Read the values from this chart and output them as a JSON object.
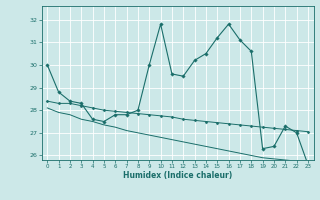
{
  "title": "",
  "xlabel": "Humidex (Indice chaleur)",
  "ylabel": "",
  "background_color": "#cce8e8",
  "grid_color": "#ffffff",
  "line_color": "#1a6e6a",
  "xlim": [
    -0.5,
    23.5
  ],
  "ylim": [
    25.8,
    32.6
  ],
  "yticks": [
    26,
    27,
    28,
    29,
    30,
    31,
    32
  ],
  "xticks": [
    0,
    1,
    2,
    3,
    4,
    5,
    6,
    7,
    8,
    9,
    10,
    11,
    12,
    13,
    14,
    15,
    16,
    17,
    18,
    19,
    20,
    21,
    22,
    23
  ],
  "line1_x": [
    0,
    1,
    2,
    3,
    4,
    5,
    6,
    7,
    8,
    9,
    10,
    11,
    12,
    13,
    14,
    15,
    16,
    17,
    18,
    19,
    20,
    21,
    22,
    23
  ],
  "line1_y": [
    30.0,
    28.8,
    28.4,
    28.3,
    27.6,
    27.5,
    27.8,
    27.8,
    28.0,
    30.0,
    31.8,
    29.6,
    29.5,
    30.2,
    30.5,
    31.2,
    31.8,
    31.1,
    30.6,
    26.3,
    26.4,
    27.3,
    27.0,
    25.6
  ],
  "line2_x": [
    0,
    1,
    2,
    3,
    4,
    5,
    6,
    7,
    8,
    9,
    10,
    11,
    12,
    13,
    14,
    15,
    16,
    17,
    18,
    19,
    20,
    21,
    22,
    23
  ],
  "line2_y": [
    28.4,
    28.3,
    28.3,
    28.2,
    28.1,
    28.0,
    27.95,
    27.9,
    27.85,
    27.8,
    27.75,
    27.7,
    27.6,
    27.55,
    27.5,
    27.45,
    27.4,
    27.35,
    27.3,
    27.25,
    27.2,
    27.15,
    27.1,
    27.05
  ],
  "line3_x": [
    0,
    1,
    2,
    3,
    4,
    5,
    6,
    7,
    8,
    9,
    10,
    11,
    12,
    13,
    14,
    15,
    16,
    17,
    18,
    19,
    20,
    21,
    22,
    23
  ],
  "line3_y": [
    28.1,
    27.9,
    27.8,
    27.6,
    27.5,
    27.35,
    27.25,
    27.1,
    27.0,
    26.9,
    26.8,
    26.7,
    26.6,
    26.5,
    26.4,
    26.3,
    26.2,
    26.1,
    26.0,
    25.9,
    25.85,
    25.8,
    25.75,
    25.7
  ]
}
